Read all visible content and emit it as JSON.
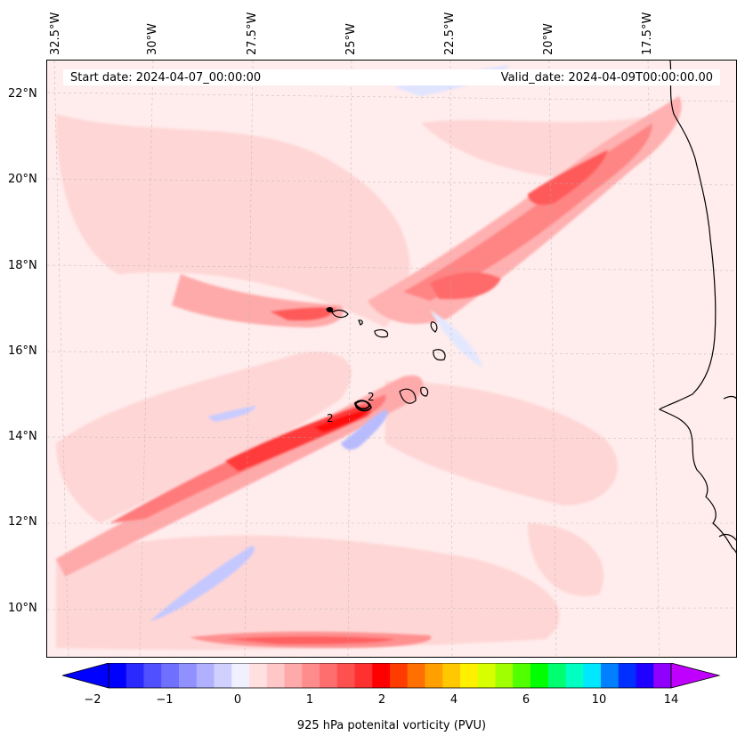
{
  "map": {
    "start_date_text": "Start date: 2024-04-07_00:00:00",
    "valid_date_text": "Valid_date: 2024-04-09T00:00:00.00",
    "lon_labels": [
      "32.5°W",
      "30°W",
      "27.5°W",
      "25°W",
      "22.5°W",
      "20°W",
      "17.5°W"
    ],
    "lat_labels": [
      "22°N",
      "20°N",
      "18°N",
      "16°N",
      "14°N",
      "12°N",
      "10°N"
    ],
    "contour_label": "2",
    "colors": {
      "background": "#ffecec",
      "light_pink": "#ffd0d0",
      "pink": "#ffaaaa",
      "red_mid": "#ff7a7a",
      "red": "#ff4040",
      "red_deep": "#ff1010",
      "light_blue": "#e8ecff",
      "blue": "#b0b6ff",
      "coast": "#000000"
    }
  },
  "colorbar": {
    "label": "925 hPa potenital vorticity (PVU)",
    "tick_labels": [
      "−2",
      "−1",
      "0",
      "1",
      "2",
      "4",
      "6",
      "10",
      "14"
    ],
    "colors": [
      "#0000ff",
      "#2a2aff",
      "#5050ff",
      "#7070ff",
      "#9090ff",
      "#b0b0ff",
      "#d0d0ff",
      "#f0f0ff",
      "#ffe0e0",
      "#ffc8c8",
      "#ffaaaa",
      "#ff8c8c",
      "#ff6e6e",
      "#ff5050",
      "#ff3030",
      "#ff0000",
      "#ff3c00",
      "#ff7000",
      "#ffa000",
      "#ffc800",
      "#fff000",
      "#d8ff00",
      "#a0ff00",
      "#50ff00",
      "#00ff00",
      "#00ff70",
      "#00ffc0",
      "#00e8ff",
      "#0080ff",
      "#0030ff",
      "#2000ff",
      "#9000ff"
    ],
    "under_color": "#0000ff",
    "over_color": "#c000ff"
  }
}
